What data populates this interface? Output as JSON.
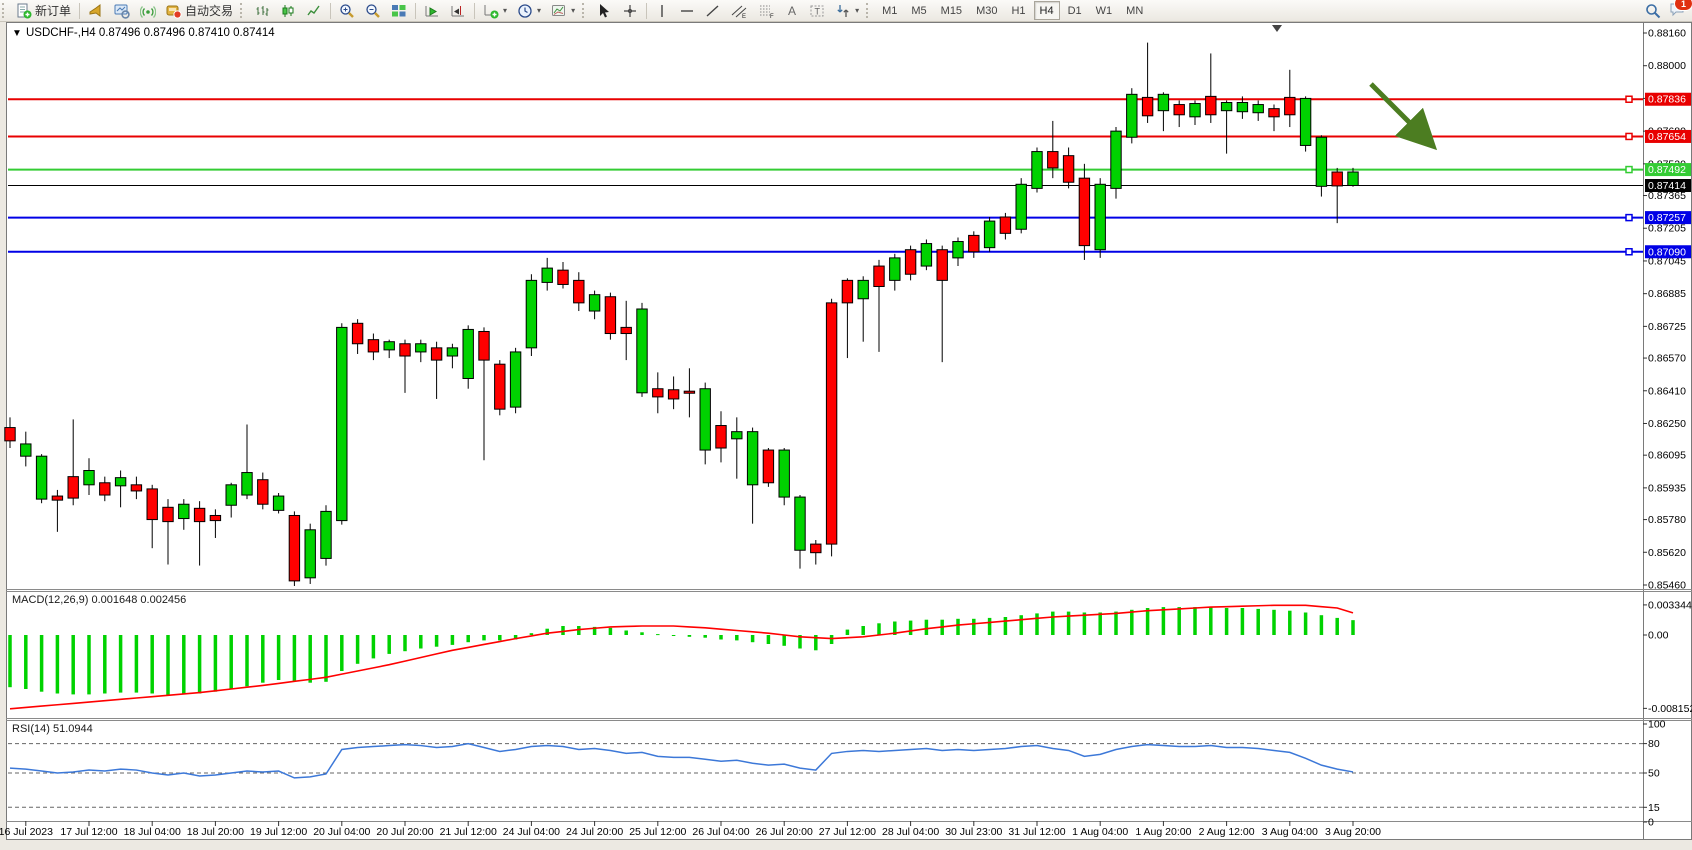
{
  "toolbar": {
    "new_order_label": "新订单",
    "auto_trading_label": "自动交易",
    "timeframes": [
      "M1",
      "M5",
      "M15",
      "M30",
      "H1",
      "H4",
      "D1",
      "W1",
      "MN"
    ],
    "selected_timeframe": "H4",
    "notification_count": "1"
  },
  "chart": {
    "title_symbol": "USDCHF-,H4",
    "title_ohlc": "0.87496 0.87496 0.87410 0.87414",
    "price_axis_ticks": [
      "0.88160",
      "0.88000",
      "0.87840",
      "0.87680",
      "0.87520",
      "0.87365",
      "0.87205",
      "0.87045",
      "0.86885",
      "0.86725",
      "0.86570",
      "0.86410",
      "0.86250",
      "0.86095",
      "0.85935",
      "0.85780",
      "0.85620",
      "0.85460"
    ],
    "price_tags": [
      {
        "label": "0.87836",
        "value": 0.87836,
        "color": "#e80000"
      },
      {
        "label": "0.87654",
        "value": 0.87654,
        "color": "#e80000"
      },
      {
        "label": "0.87492",
        "value": 0.87492,
        "color": "#33cc33"
      },
      {
        "label": "0.87414",
        "value": 0.87414,
        "color": "#000000"
      },
      {
        "label": "0.87257",
        "value": 0.87257,
        "color": "#0000e6"
      },
      {
        "label": "0.87090",
        "value": 0.8709,
        "color": "#0000e6"
      }
    ],
    "hlines": [
      {
        "price": 0.87836,
        "color": "#e80000"
      },
      {
        "price": 0.87654,
        "color": "#e80000"
      },
      {
        "price": 0.87492,
        "color": "#33cc33"
      },
      {
        "price": 0.87257,
        "color": "#0000e6"
      },
      {
        "price": 0.8709,
        "color": "#0000e6"
      }
    ],
    "current_price": 0.87414,
    "time_labels": [
      "16 Jul 2023",
      "17 Jul 12:00",
      "18 Jul 04:00",
      "18 Jul 20:00",
      "19 Jul 12:00",
      "20 Jul 04:00",
      "20 Jul 20:00",
      "21 Jul 12:00",
      "24 Jul 04:00",
      "24 Jul 20:00",
      "25 Jul 12:00",
      "26 Jul 04:00",
      "26 Jul 20:00",
      "27 Jul 12:00",
      "28 Jul 04:00",
      "30 Jul 23:00",
      "31 Jul 12:00",
      "1 Aug 04:00",
      "1 Aug 20:00",
      "2 Aug 12:00",
      "3 Aug 04:00",
      "3 Aug 20:00"
    ],
    "arrow_color": "#4c7d21"
  },
  "indicators": {
    "macd": {
      "label": "MACD(12,26,9)",
      "value_main": "0.001648",
      "value_signal": "0.002456",
      "axis": [
        "0.003344",
        "0.00",
        "-0.008152"
      ]
    },
    "rsi": {
      "label": "RSI(14)",
      "value": "51.0944",
      "axis": [
        "100",
        "80",
        "50",
        "15",
        "0"
      ],
      "levels": [
        80,
        50,
        15
      ]
    }
  },
  "chart_data": {
    "type": "candlestick",
    "symbol": "USDCHF",
    "period": "H4",
    "price_range": {
      "top": 0.8816,
      "bottom": 0.8546
    },
    "bull_color": "#00d200",
    "bear_color": "#ff0000",
    "candles": [
      [
        0.8628,
        0.8613,
        0.8623,
        0.86165,
        "r"
      ],
      [
        0.8621,
        0.8604,
        0.8615,
        0.8609,
        "g"
      ],
      [
        0.861,
        0.8586,
        0.8609,
        0.8588,
        "g"
      ],
      [
        0.85925,
        0.8572,
        0.85895,
        0.85875,
        "r"
      ],
      [
        0.8627,
        0.8585,
        0.8599,
        0.85885,
        "r"
      ],
      [
        0.8608,
        0.859,
        0.8602,
        0.8595,
        "g"
      ],
      [
        0.8599,
        0.8587,
        0.8596,
        0.859,
        "r"
      ],
      [
        0.8602,
        0.8584,
        0.85985,
        0.85945,
        "g"
      ],
      [
        0.8599,
        0.8588,
        0.8595,
        0.8592,
        "r"
      ],
      [
        0.8595,
        0.8564,
        0.8593,
        0.8578,
        "r"
      ],
      [
        0.8588,
        0.8556,
        0.8584,
        0.8577,
        "r"
      ],
      [
        0.8588,
        0.8573,
        0.85855,
        0.85785,
        "g"
      ],
      [
        0.8587,
        0.85555,
        0.85835,
        0.8577,
        "r"
      ],
      [
        0.8583,
        0.8569,
        0.858,
        0.85775,
        "r"
      ],
      [
        0.8596,
        0.8579,
        0.8595,
        0.8585,
        "g"
      ],
      [
        0.86245,
        0.8588,
        0.8601,
        0.859,
        "g"
      ],
      [
        0.8601,
        0.8583,
        0.85975,
        0.85855,
        "r"
      ],
      [
        0.8591,
        0.8581,
        0.85895,
        0.85825,
        "g"
      ],
      [
        0.8582,
        0.85455,
        0.858,
        0.8548,
        "r"
      ],
      [
        0.8576,
        0.85465,
        0.8573,
        0.85495,
        "g"
      ],
      [
        0.8585,
        0.85555,
        0.8582,
        0.8559,
        "g"
      ],
      [
        0.8674,
        0.85755,
        0.8672,
        0.85775,
        "g"
      ],
      [
        0.8676,
        0.8659,
        0.8674,
        0.8664,
        "r"
      ],
      [
        0.8669,
        0.8656,
        0.8666,
        0.866,
        "r"
      ],
      [
        0.8666,
        0.8657,
        0.8665,
        0.8661,
        "g"
      ],
      [
        0.8666,
        0.864,
        0.8664,
        0.8658,
        "r"
      ],
      [
        0.8666,
        0.8655,
        0.8664,
        0.866,
        "g"
      ],
      [
        0.8665,
        0.8637,
        0.8662,
        0.8656,
        "r"
      ],
      [
        0.8664,
        0.8652,
        0.8662,
        0.8658,
        "g"
      ],
      [
        0.8673,
        0.8642,
        0.8671,
        0.8647,
        "g"
      ],
      [
        0.8672,
        0.8607,
        0.867,
        0.8656,
        "r"
      ],
      [
        0.8656,
        0.8629,
        0.8654,
        0.8632,
        "r"
      ],
      [
        0.8662,
        0.863,
        0.866,
        0.8633,
        "g"
      ],
      [
        0.8698,
        0.8658,
        0.8695,
        0.8662,
        "g"
      ],
      [
        0.8706,
        0.869,
        0.8701,
        0.8694,
        "g"
      ],
      [
        0.8704,
        0.8691,
        0.87,
        0.8693,
        "r"
      ],
      [
        0.8699,
        0.868,
        0.8695,
        0.8684,
        "r"
      ],
      [
        0.869,
        0.8676,
        0.8688,
        0.868,
        "g"
      ],
      [
        0.8689,
        0.8666,
        0.8687,
        0.8669,
        "r"
      ],
      [
        0.8685,
        0.8656,
        0.8672,
        0.8669,
        "r"
      ],
      [
        0.8684,
        0.8638,
        0.8681,
        0.864,
        "g"
      ],
      [
        0.865,
        0.863,
        0.8642,
        0.8638,
        "r"
      ],
      [
        0.8648,
        0.8632,
        0.86415,
        0.8637,
        "r"
      ],
      [
        0.8652,
        0.8628,
        0.86408,
        0.86398,
        "r"
      ],
      [
        0.8645,
        0.8605,
        0.8642,
        0.8612,
        "g"
      ],
      [
        0.8631,
        0.8606,
        0.8624,
        0.8613,
        "r"
      ],
      [
        0.8628,
        0.8598,
        0.8621,
        0.86175,
        "g"
      ],
      [
        0.8623,
        0.8576,
        0.8621,
        0.8595,
        "g"
      ],
      [
        0.8613,
        0.8594,
        0.8612,
        0.8596,
        "r"
      ],
      [
        0.8613,
        0.8585,
        0.8612,
        0.8589,
        "g"
      ],
      [
        0.859,
        0.8554,
        0.8589,
        0.8563,
        "g"
      ],
      [
        0.8568,
        0.8556,
        0.8566,
        0.85618,
        "r"
      ],
      [
        0.8686,
        0.856,
        0.8684,
        0.8566,
        "r"
      ],
      [
        0.8696,
        0.8657,
        0.8695,
        0.8684,
        "r"
      ],
      [
        0.8697,
        0.8665,
        0.8695,
        0.8686,
        "g"
      ],
      [
        0.8705,
        0.866,
        0.8702,
        0.8692,
        "r"
      ],
      [
        0.8708,
        0.869,
        0.8706,
        0.8695,
        "g"
      ],
      [
        0.8712,
        0.8695,
        0.871,
        0.8698,
        "r"
      ],
      [
        0.8715,
        0.87,
        0.8713,
        0.8702,
        "g"
      ],
      [
        0.8712,
        0.8655,
        0.871,
        0.8695,
        "r"
      ],
      [
        0.8716,
        0.8702,
        0.8714,
        0.8706,
        "g"
      ],
      [
        0.8719,
        0.8706,
        0.8717,
        0.8709,
        "r"
      ],
      [
        0.8726,
        0.8709,
        0.8724,
        0.8711,
        "g"
      ],
      [
        0.8728,
        0.8715,
        0.8726,
        0.8718,
        "r"
      ],
      [
        0.8745,
        0.8718,
        0.8742,
        0.872,
        "g"
      ],
      [
        0.876,
        0.8738,
        0.8758,
        0.874,
        "g"
      ],
      [
        0.8773,
        0.8745,
        0.8758,
        0.875,
        "r"
      ],
      [
        0.876,
        0.874,
        0.8756,
        0.8743,
        "r"
      ],
      [
        0.8752,
        0.8705,
        0.8745,
        0.8712,
        "r"
      ],
      [
        0.8745,
        0.8706,
        0.8742,
        0.871,
        "g"
      ],
      [
        0.877,
        0.8735,
        0.8768,
        0.874,
        "g"
      ],
      [
        0.8789,
        0.8762,
        0.8786,
        0.8765,
        "g"
      ],
      [
        0.88113,
        0.8772,
        0.87845,
        0.87755,
        "r"
      ],
      [
        0.8787,
        0.8768,
        0.8786,
        0.8778,
        "g"
      ],
      [
        0.8783,
        0.877,
        0.8781,
        0.8776,
        "r"
      ],
      [
        0.8783,
        0.8771,
        0.87815,
        0.8775,
        "g"
      ],
      [
        0.8806,
        0.8772,
        0.8785,
        0.8776,
        "r"
      ],
      [
        0.8783,
        0.8757,
        0.8782,
        0.8778,
        "g"
      ],
      [
        0.8785,
        0.8774,
        0.8782,
        0.87775,
        "g"
      ],
      [
        0.8783,
        0.8773,
        0.8781,
        0.8777,
        "g"
      ],
      [
        0.8781,
        0.8768,
        0.8779,
        0.8775,
        "r"
      ],
      [
        0.8798,
        0.877,
        0.87845,
        0.8776,
        "r"
      ],
      [
        0.8785,
        0.8758,
        0.8784,
        0.8761,
        "g"
      ],
      [
        0.8766,
        0.8736,
        0.8765,
        0.8741,
        "g"
      ],
      [
        0.875,
        0.8723,
        0.8748,
        0.87412,
        "r"
      ],
      [
        0.875,
        0.87408,
        0.8748,
        0.87414,
        "g"
      ]
    ],
    "macd_histogram": [
      -0.0058,
      -0.006,
      -0.0063,
      -0.0065,
      -0.0066,
      -0.0066,
      -0.0065,
      -0.0064,
      -0.0064,
      -0.0065,
      -0.0067,
      -0.0066,
      -0.0065,
      -0.0063,
      -0.006,
      -0.0057,
      -0.0053,
      -0.005,
      -0.0052,
      -0.0053,
      -0.0052,
      -0.004,
      -0.0032,
      -0.0026,
      -0.0021,
      -0.0018,
      -0.0015,
      -0.0013,
      -0.0011,
      -0.0008,
      -0.0006,
      -0.0006,
      -0.0005,
      0.0002,
      0.0007,
      0.001,
      0.001,
      0.0009,
      0.0008,
      0.0005,
      0.0003,
      0.0001,
      -0.0001,
      -0.0002,
      -0.0003,
      -0.0005,
      -0.0006,
      -0.0008,
      -0.001,
      -0.0012,
      -0.0015,
      -0.0017,
      -0.001,
      0.0006,
      0.001,
      0.0013,
      0.0015,
      0.0016,
      0.0017,
      0.0017,
      0.0018,
      0.0018,
      0.0019,
      0.002,
      0.0022,
      0.0024,
      0.0026,
      0.0026,
      0.0025,
      0.0025,
      0.0026,
      0.0028,
      0.003,
      0.0031,
      0.0031,
      0.0031,
      0.0031,
      0.003,
      0.003,
      0.0029,
      0.0028,
      0.0027,
      0.0025,
      0.0022,
      0.0019,
      0.00165
    ],
    "macd_signal": [
      -0.0082,
      -0.00805,
      -0.0079,
      -0.00775,
      -0.0076,
      -0.00745,
      -0.0073,
      -0.00715,
      -0.007,
      -0.00685,
      -0.0067,
      -0.00655,
      -0.0064,
      -0.0062,
      -0.006,
      -0.0058,
      -0.0056,
      -0.00538,
      -0.00515,
      -0.00493,
      -0.0047,
      -0.00435,
      -0.004,
      -0.00365,
      -0.0033,
      -0.0029,
      -0.0025,
      -0.0021,
      -0.0017,
      -0.00138,
      -0.00105,
      -0.00073,
      -0.0004,
      -0.0001,
      0.0002,
      0.0004,
      0.0006,
      0.00075,
      0.0009,
      0.00095,
      0.001,
      0.001,
      0.001,
      0.0009,
      0.0008,
      0.00065,
      0.0005,
      0.00035,
      0.0002,
      0.0,
      -0.0002,
      -0.0003,
      -0.0004,
      -0.0003,
      -0.0002,
      0.0,
      0.0002,
      0.00045,
      0.0007,
      0.0009,
      0.0011,
      0.00125,
      0.0014,
      0.00155,
      0.0017,
      0.00185,
      0.002,
      0.0021,
      0.0022,
      0.0023,
      0.0024,
      0.00255,
      0.0027,
      0.0028,
      0.0029,
      0.003,
      0.0031,
      0.00315,
      0.0032,
      0.00325,
      0.0033,
      0.0033,
      0.0033,
      0.00315,
      0.003,
      0.00246
    ],
    "rsi": [
      55,
      54,
      52,
      50,
      51,
      53,
      52,
      54,
      53,
      50,
      48,
      50,
      47,
      48,
      50,
      52,
      51,
      52,
      45,
      46,
      49,
      74,
      76,
      77,
      78,
      79,
      78,
      76,
      77,
      80,
      76,
      72,
      74,
      77,
      78,
      77,
      74,
      75,
      73,
      70,
      71,
      67,
      66,
      66,
      64,
      62,
      63,
      60,
      58,
      59,
      55,
      53,
      70,
      72,
      73,
      72,
      73,
      74,
      75,
      73,
      74,
      73,
      74,
      75,
      77,
      78,
      75,
      73,
      67,
      69,
      74,
      77,
      79,
      78,
      77,
      77,
      78,
      76,
      76,
      75,
      73,
      71,
      65,
      58,
      54,
      51.09
    ]
  }
}
